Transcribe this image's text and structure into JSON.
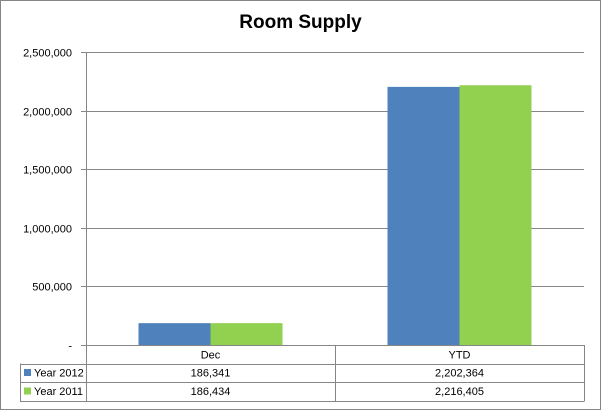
{
  "chart_data": {
    "type": "bar",
    "title": "Room Supply",
    "categories": [
      "Dec",
      "YTD"
    ],
    "series": [
      {
        "name": "Year 2012",
        "values": [
          186341,
          2202364
        ],
        "display": [
          "186,341",
          "2,202,364"
        ],
        "color": "#4f81bd"
      },
      {
        "name": "Year 2011",
        "values": [
          186434,
          2216405
        ],
        "display": [
          "186,434",
          "2,216,405"
        ],
        "color": "#92d050"
      }
    ],
    "yticks": [
      {
        "value": 0,
        "label": "-"
      },
      {
        "value": 500000,
        "label": "500,000"
      },
      {
        "value": 1000000,
        "label": "1,000,000"
      },
      {
        "value": 1500000,
        "label": "1,500,000"
      },
      {
        "value": 2000000,
        "label": "2,000,000"
      },
      {
        "value": 2500000,
        "label": "2,500,000"
      }
    ],
    "ylim": [
      0,
      2500000
    ],
    "grid": true,
    "legend": "data-table"
  }
}
